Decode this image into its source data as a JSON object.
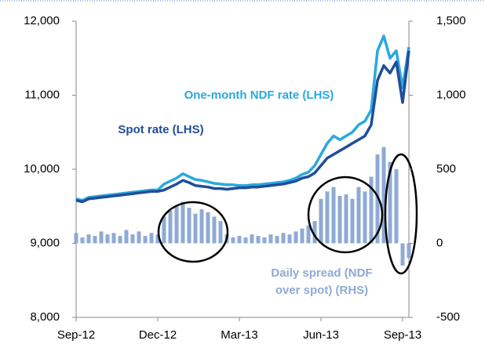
{
  "chart_data": {
    "type": "line",
    "categories": [
      "Sep-12",
      null,
      null,
      null,
      null,
      null,
      null,
      null,
      null,
      null,
      null,
      null,
      null,
      "Dec-12",
      null,
      null,
      null,
      null,
      null,
      null,
      null,
      null,
      null,
      null,
      null,
      null,
      "Mar-13",
      null,
      null,
      null,
      null,
      null,
      null,
      null,
      null,
      null,
      null,
      null,
      null,
      "Jun-13",
      null,
      null,
      null,
      null,
      null,
      null,
      null,
      null,
      null,
      null,
      null,
      null,
      "Sep-13",
      null
    ],
    "series": [
      {
        "name": "One-month NDF rate (LHS)",
        "color": "#2aa8e0",
        "values": [
          9600,
          9580,
          9620,
          9630,
          9640,
          9650,
          9660,
          9670,
          9680,
          9690,
          9700,
          9710,
          9720,
          9720,
          9800,
          9840,
          9880,
          9940,
          9900,
          9860,
          9850,
          9830,
          9810,
          9800,
          9790,
          9790,
          9780,
          9780,
          9790,
          9790,
          9800,
          9810,
          9820,
          9830,
          9850,
          9880,
          9930,
          9960,
          10050,
          10200,
          10350,
          10450,
          10400,
          10450,
          10500,
          10600,
          10650,
          10800,
          11600,
          11800,
          11500,
          11600,
          11100,
          11650
        ]
      },
      {
        "name": "Spot rate (LHS)",
        "color": "#1f4e9a",
        "values": [
          9580,
          9560,
          9600,
          9610,
          9620,
          9630,
          9640,
          9650,
          9660,
          9670,
          9680,
          9690,
          9700,
          9700,
          9720,
          9760,
          9800,
          9850,
          9820,
          9780,
          9770,
          9760,
          9740,
          9740,
          9730,
          9740,
          9750,
          9750,
          9760,
          9760,
          9770,
          9780,
          9790,
          9800,
          9820,
          9840,
          9880,
          9900,
          9950,
          10050,
          10150,
          10200,
          10250,
          10300,
          10350,
          10400,
          10450,
          10600,
          11200,
          11400,
          11300,
          11450,
          10900,
          11600
        ]
      },
      {
        "name": "Daily spread  (NDF over spot) (RHS)",
        "color": "#8eaad6",
        "axis": "y2",
        "values": [
          70,
          40,
          60,
          50,
          80,
          60,
          70,
          50,
          90,
          60,
          80,
          50,
          70,
          60,
          180,
          220,
          250,
          280,
          240,
          200,
          230,
          210,
          180,
          150,
          60,
          40,
          50,
          40,
          60,
          50,
          40,
          60,
          50,
          70,
          60,
          80,
          100,
          120,
          150,
          300,
          350,
          380,
          320,
          330,
          300,
          380,
          350,
          450,
          600,
          650,
          550,
          500,
          -150,
          -100
        ]
      }
    ],
    "annotations": [
      "One-month NDF rate (LHS)",
      "Spot rate (LHS)",
      "Daily spread  (NDF",
      "over spot) (RHS)"
    ],
    "ylim": [
      8000,
      12000
    ],
    "yticks": [
      {
        "value": 8000,
        "label": "8,000"
      },
      {
        "value": 9000,
        "label": "9,000"
      },
      {
        "value": 10000,
        "label": "10,000"
      },
      {
        "value": 11000,
        "label": "11,000"
      },
      {
        "value": 12000,
        "label": "12,000"
      }
    ],
    "y2lim": [
      -500,
      1500
    ],
    "y2ticks": [
      -500,
      0,
      500,
      {
        "value": 1000,
        "label": "1,000"
      },
      {
        "value": 1500,
        "label": "1,500"
      }
    ]
  }
}
